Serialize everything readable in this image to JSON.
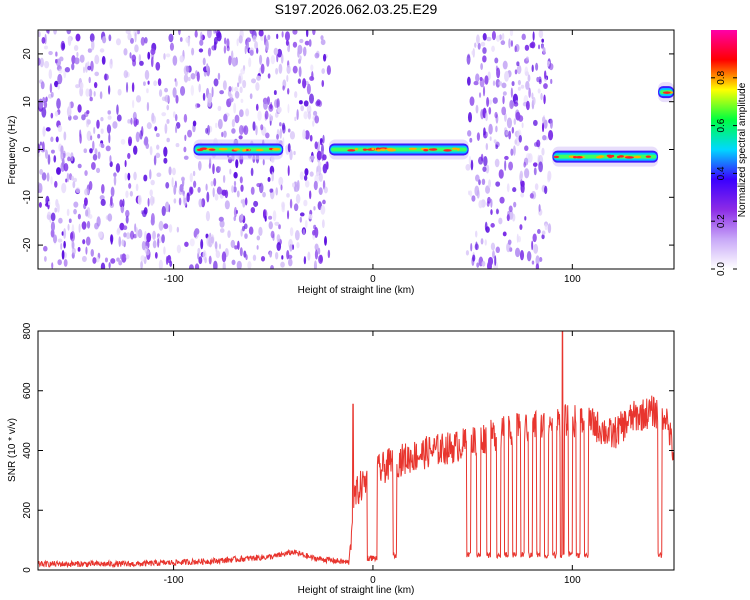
{
  "title": "S197.2026.062.03.25.E29",
  "chart_data": [
    {
      "type": "heatmap",
      "xlabel": "Height of straight line (km)",
      "ylabel": "Frequency (Hz)",
      "xlim": [
        -168,
        151
      ],
      "ylim": [
        -25,
        25
      ],
      "xticks": [
        -100,
        0,
        100
      ],
      "xtick_labels": [
        "-100",
        "0",
        "100"
      ],
      "yticks": [
        20,
        10,
        0,
        -10,
        -20
      ],
      "ytick_labels": [
        "20",
        "10",
        "0",
        "-10",
        "-20"
      ],
      "colorbar": {
        "label": "Normalized spectral amplitude",
        "range": [
          0,
          1
        ],
        "ticks": [
          0.0,
          0.2,
          0.4,
          0.6,
          0.8
        ],
        "tick_labels": [
          "0.0",
          "0.2",
          "0.4",
          "0.6",
          "0.8"
        ],
        "colormap": [
          "#ffffff",
          "#c8a8f8",
          "#8c2be6",
          "#3a00ff",
          "#00d8ff",
          "#00ff40",
          "#ffff00",
          "#ff0000",
          "#ff00a8"
        ]
      },
      "features": [
        {
          "name": "noise band",
          "x": [
            -168,
            -22
          ],
          "y": [
            -25,
            25
          ]
        },
        {
          "name": "signal trace",
          "x": [
            -90,
            -45
          ],
          "y_center": 0
        },
        {
          "name": "signal trace",
          "x": [
            -22,
            48
          ],
          "y_center": 0
        },
        {
          "name": "noise band",
          "x": [
            47,
            90
          ],
          "y": [
            -25,
            25
          ]
        },
        {
          "name": "signal trace",
          "x": [
            90,
            143
          ],
          "y_center": -1.5
        },
        {
          "name": "signal trace",
          "x": [
            143,
            151
          ],
          "y_center": 12
        }
      ]
    },
    {
      "type": "line",
      "xlabel": "Height of straight line (km)",
      "ylabel": "SNR (10 * v/v)",
      "xlim": [
        -168,
        151
      ],
      "ylim": [
        0,
        800
      ],
      "xticks": [
        -100,
        0,
        100
      ],
      "xtick_labels": [
        "-100",
        "0",
        "100"
      ],
      "yticks": [
        0,
        200,
        400,
        600,
        800
      ],
      "ytick_labels": [
        "0",
        "200",
        "400",
        "600",
        "800"
      ],
      "line_color": "#e8352e",
      "profile": {
        "x": [
          -168,
          -120,
          -80,
          -50,
          -40,
          -30,
          -12,
          -10,
          -9,
          -5,
          0,
          10,
          20,
          30,
          40,
          45,
          50,
          60,
          70,
          80,
          90,
          95,
          100,
          110,
          120,
          130,
          140,
          147,
          151
        ],
        "y": [
          20,
          20,
          30,
          45,
          60,
          40,
          25,
          200,
          250,
          290,
          320,
          360,
          380,
          400,
          410,
          420,
          430,
          450,
          470,
          480,
          490,
          500,
          500,
          490,
          450,
          510,
          530,
          520,
          380
        ]
      },
      "spikes": [
        {
          "x": -10,
          "y": 555
        },
        {
          "x": 95,
          "y": 800
        }
      ],
      "dropouts": [
        {
          "x": [
            -3,
            2
          ],
          "y": 30
        },
        {
          "x": [
            10,
            12
          ],
          "y": 40
        },
        {
          "x": [
            47,
            49
          ],
          "y": 40
        },
        {
          "x": [
            52,
            54
          ],
          "y": 40
        },
        {
          "x": [
            57,
            59
          ],
          "y": 40
        },
        {
          "x": [
            62,
            64
          ],
          "y": 40
        },
        {
          "x": [
            66,
            68
          ],
          "y": 40
        },
        {
          "x": [
            70,
            72
          ],
          "y": 40
        },
        {
          "x": [
            74,
            76
          ],
          "y": 40
        },
        {
          "x": [
            78,
            80
          ],
          "y": 40
        },
        {
          "x": [
            82,
            84
          ],
          "y": 40
        },
        {
          "x": [
            86,
            88
          ],
          "y": 40
        },
        {
          "x": [
            90,
            92
          ],
          "y": 40
        },
        {
          "x": [
            94,
            96
          ],
          "y": 40
        },
        {
          "x": [
            98,
            100
          ],
          "y": 40
        },
        {
          "x": [
            102,
            104
          ],
          "y": 40
        },
        {
          "x": [
            106,
            108
          ],
          "y": 40
        },
        {
          "x": [
            143,
            145
          ],
          "y": 40
        }
      ]
    }
  ]
}
